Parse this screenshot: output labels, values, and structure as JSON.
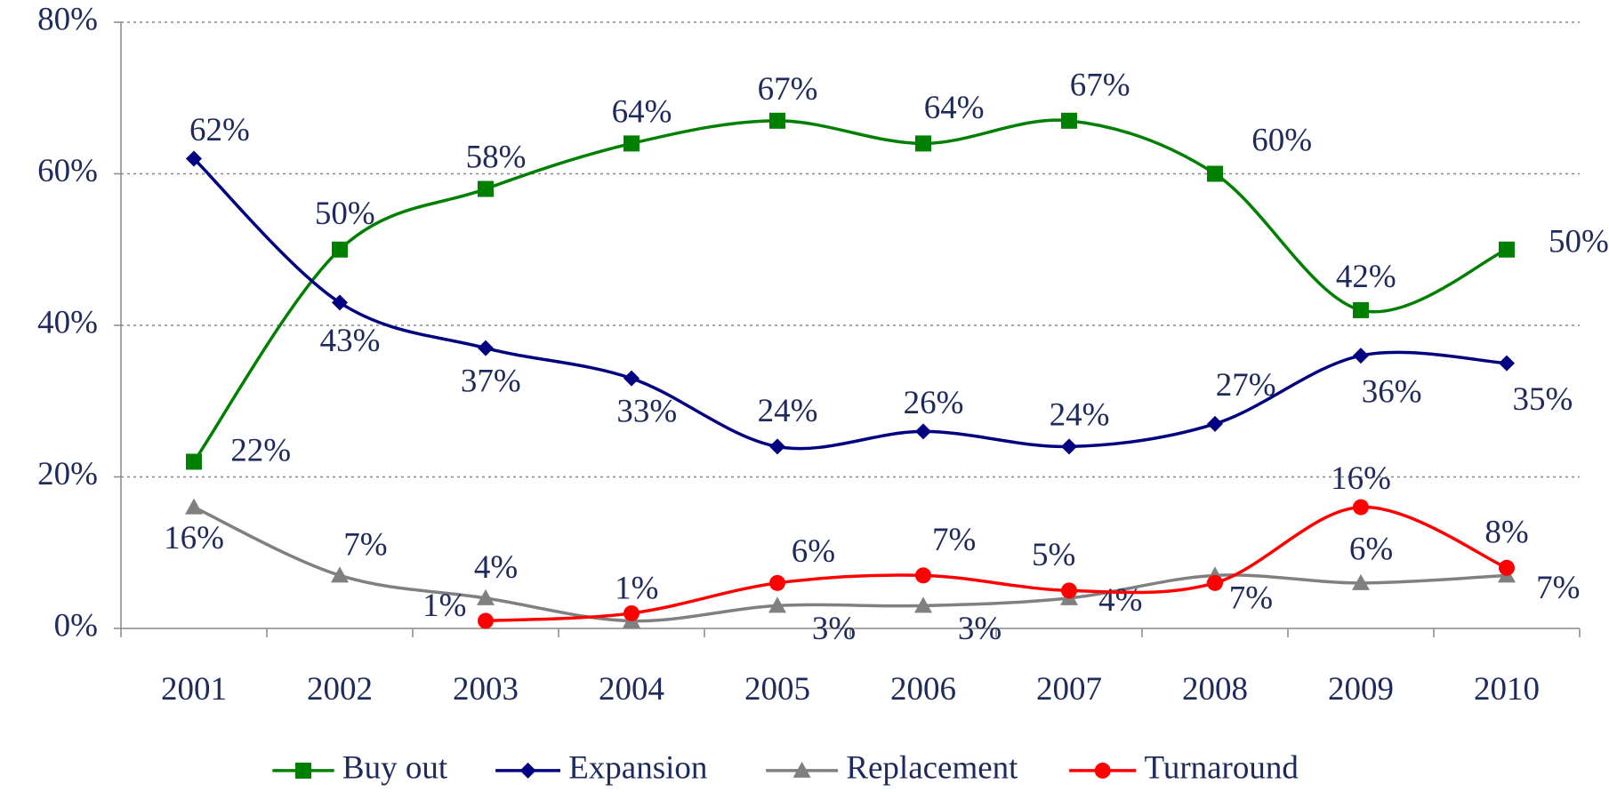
{
  "chart_data": {
    "type": "line",
    "categories": [
      "2001",
      "2002",
      "2003",
      "2004",
      "2005",
      "2006",
      "2007",
      "2008",
      "2009",
      "2010"
    ],
    "series": [
      {
        "name": "Buy out",
        "color": "#008000",
        "marker": "square",
        "values": [
          22,
          50,
          58,
          64,
          67,
          64,
          67,
          60,
          42,
          50
        ],
        "value_labels": [
          "22%",
          "50%",
          "58%",
          "64%",
          "67%",
          "64%",
          "67%",
          "60%",
          "42%",
          "50%"
        ]
      },
      {
        "name": "Expansion",
        "color": "#000080",
        "marker": "diamond",
        "values": [
          62,
          43,
          37,
          33,
          24,
          26,
          24,
          27,
          36,
          35
        ],
        "value_labels": [
          "62%",
          "43%",
          "37%",
          "33%",
          "24%",
          "26%",
          "24%",
          "27%",
          "36%",
          "35%"
        ]
      },
      {
        "name": "Replacement",
        "color": "#808080",
        "marker": "triangle",
        "values": [
          16,
          7,
          4,
          1,
          3,
          3,
          4,
          7,
          6,
          7
        ],
        "value_labels": [
          "16%",
          "7%",
          "4%",
          "1%",
          "3%",
          "3%",
          "4%",
          "7%",
          "6%",
          "7%"
        ]
      },
      {
        "name": "Turnaround",
        "color": "#ff0000",
        "marker": "circle",
        "values": [
          null,
          null,
          1,
          2,
          6,
          7,
          5,
          6,
          16,
          8
        ],
        "value_labels": [
          null,
          null,
          "1%",
          null,
          "6%",
          "7%",
          "5%",
          null,
          "16%",
          "8%"
        ]
      }
    ],
    "ylim": [
      0,
      80
    ],
    "yticks": [
      {
        "value": 0,
        "label": "0%"
      },
      {
        "value": 20,
        "label": "20%"
      },
      {
        "value": 40,
        "label": "40%"
      },
      {
        "value": 60,
        "label": "60%"
      },
      {
        "value": 80,
        "label": "80%"
      }
    ],
    "grid": true,
    "legend": "bottom"
  }
}
